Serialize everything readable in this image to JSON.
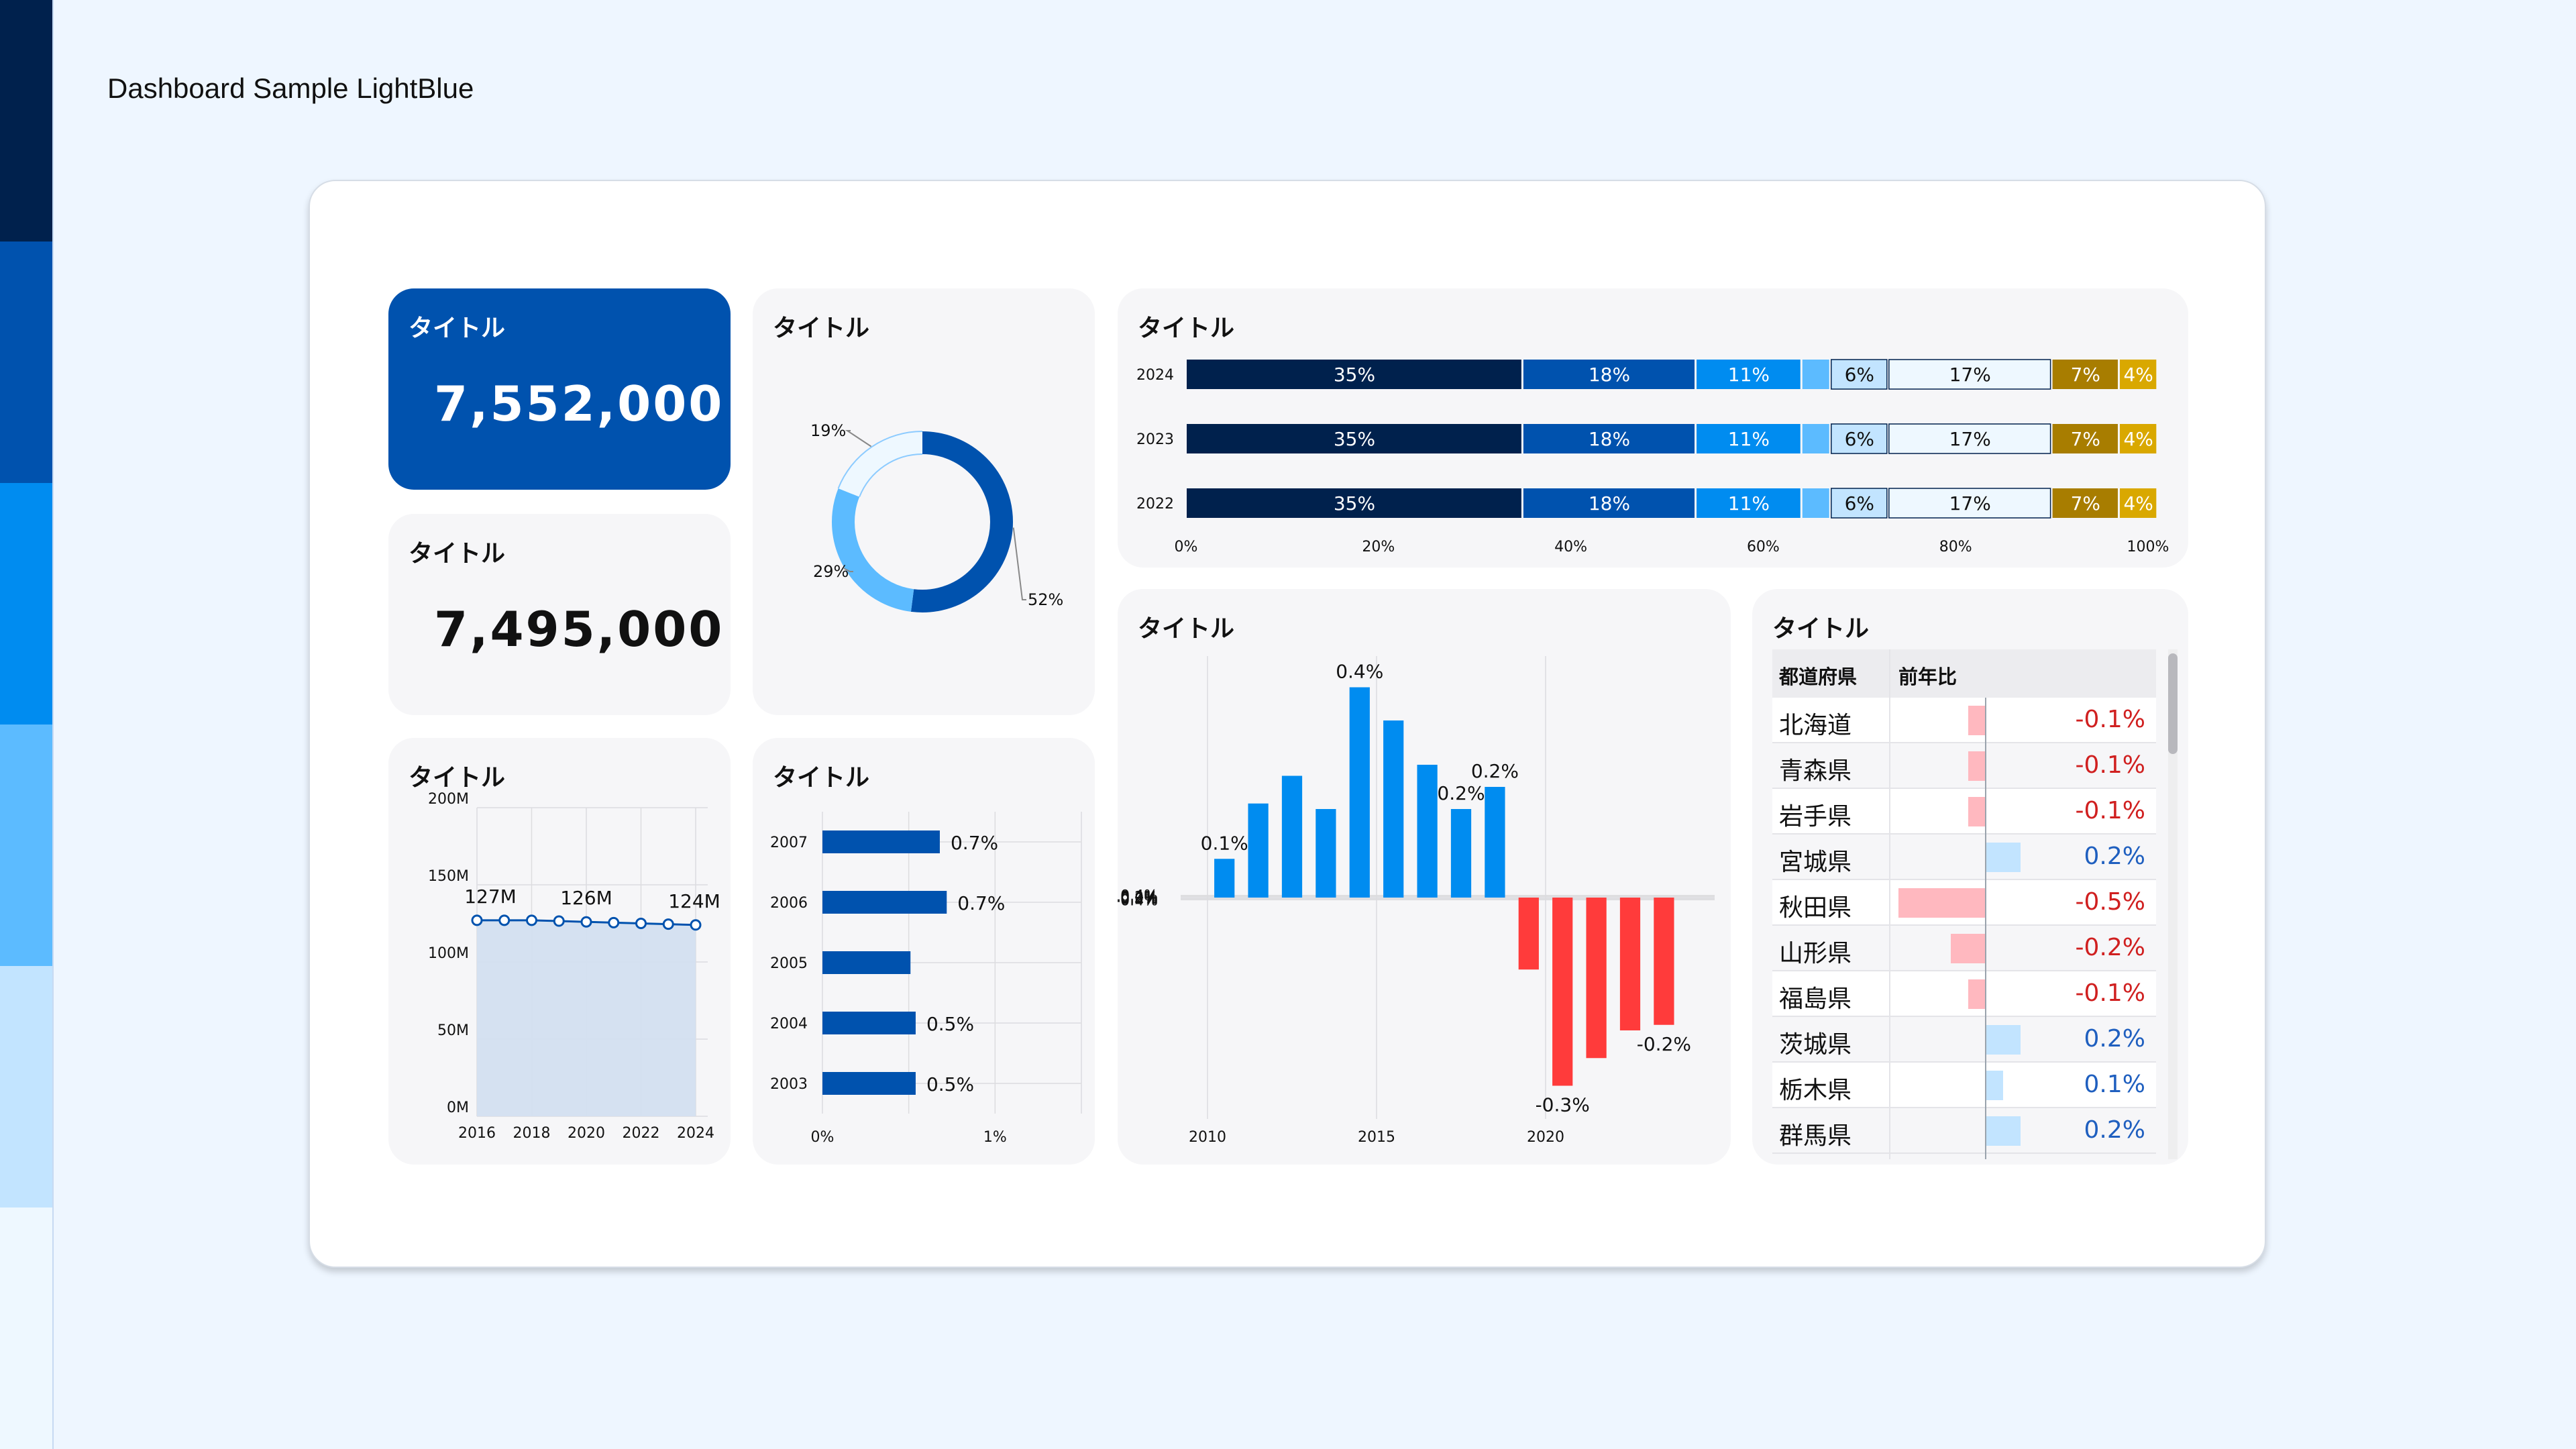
{
  "page_title": "Dashboard Sample LightBlue",
  "palette": [
    "#00214d",
    "#0052ae",
    "#008cf0",
    "#5cbbff",
    "#c2e4ff",
    "#eef8ff"
  ],
  "cards": {
    "kpi1": {
      "title": "タイトル",
      "value": "7,552,000"
    },
    "kpi2": {
      "title": "タイトル",
      "value": "7,495,000"
    },
    "donut": {
      "title": "タイトル"
    },
    "stacked": {
      "title": "タイトル"
    },
    "area": {
      "title": "タイトル"
    },
    "hbar": {
      "title": "タイトル"
    },
    "column": {
      "title": "タイトル"
    },
    "table": {
      "title": "タイトル"
    }
  },
  "chart_data": [
    {
      "id": "donut",
      "type": "pie",
      "hole": true,
      "slices": [
        {
          "value": 52,
          "label": "52%",
          "color": "#0052ae"
        },
        {
          "value": 29,
          "label": "29%",
          "color": "#5cbbff"
        },
        {
          "value": 19,
          "label": "19%",
          "color": "#eef8ff"
        }
      ]
    },
    {
      "id": "stacked",
      "type": "bar",
      "orientation": "horizontal",
      "stacked": "percent",
      "categories": [
        "2024",
        "2023",
        "2022"
      ],
      "segments": [
        {
          "values": [
            35,
            35,
            35
          ],
          "labels": [
            "35%",
            "35%",
            "35%"
          ],
          "color": "#00214d",
          "text": "#ffffff"
        },
        {
          "values": [
            18,
            18,
            18
          ],
          "labels": [
            "18%",
            "18%",
            "18%"
          ],
          "color": "#0052ae",
          "text": "#ffffff"
        },
        {
          "values": [
            11,
            11,
            11
          ],
          "labels": [
            "11%",
            "11%",
            "11%"
          ],
          "color": "#008cf0",
          "text": "#ffffff"
        },
        {
          "values": [
            3,
            3,
            3
          ],
          "labels": [
            "",
            "",
            ""
          ],
          "color": "#5cbbff",
          "text": "#111111"
        },
        {
          "values": [
            6,
            6,
            6
          ],
          "labels": [
            "6%",
            "6%",
            "6%"
          ],
          "color": "#c2e4ff",
          "text": "#111111"
        },
        {
          "values": [
            17,
            17,
            17
          ],
          "labels": [
            "17%",
            "17%",
            "17%"
          ],
          "color": "#eef8ff",
          "text": "#111111"
        },
        {
          "values": [
            7,
            7,
            7
          ],
          "labels": [
            "7%",
            "7%",
            "7%"
          ],
          "color": "#a87d00",
          "text": "#ffffff"
        },
        {
          "values": [
            4,
            4,
            4
          ],
          "labels": [
            "4%",
            "4%",
            "4%"
          ],
          "color": "#d9a800",
          "text": "#ffffff"
        }
      ],
      "x_ticks": [
        "0%",
        "20%",
        "40%",
        "60%",
        "80%",
        "100%"
      ],
      "xlim": [
        0,
        100
      ]
    },
    {
      "id": "area",
      "type": "area",
      "x": [
        2016,
        2017,
        2018,
        2019,
        2020,
        2021,
        2022,
        2023,
        2024
      ],
      "values": [
        127,
        127,
        127,
        126.5,
        126,
        125.5,
        125,
        124.5,
        124
      ],
      "labels": [
        {
          "index": 0,
          "text": "127M"
        },
        {
          "index": 4,
          "text": "126M"
        },
        {
          "index": 8,
          "text": "124M"
        }
      ],
      "x_ticks": [
        "2016",
        "2018",
        "2020",
        "2022",
        "2024"
      ],
      "y_ticks": [
        "0M",
        "50M",
        "100M",
        "150M",
        "200M"
      ],
      "ylim": [
        0,
        200
      ],
      "line_color": "#0052ae",
      "fill_color": "#d3dff0"
    },
    {
      "id": "hbar",
      "type": "bar",
      "orientation": "horizontal",
      "categories": [
        "2007",
        "2006",
        "2005",
        "2004",
        "2003"
      ],
      "values": [
        0.68,
        0.72,
        0.51,
        0.54,
        0.54
      ],
      "labels": [
        "0.7%",
        "0.7%",
        "",
        "0.5%",
        "0.5%"
      ],
      "x_ticks": [
        "0%",
        "1%"
      ],
      "xlim": [
        0,
        1.5
      ],
      "color": "#0052ae"
    },
    {
      "id": "column",
      "type": "bar",
      "x": [
        2010,
        2011,
        2012,
        2013,
        2014,
        2015,
        2016,
        2017,
        2018,
        2019,
        2020,
        2021,
        2022,
        2023,
        2024
      ],
      "values": [
        0.07,
        0.17,
        0.22,
        0.16,
        0.38,
        0.32,
        0.24,
        0.16,
        0.2,
        -0.13,
        -0.34,
        -0.29,
        -0.24,
        -0.23,
        0
      ],
      "labels": [
        "0.1%",
        "",
        "",
        "",
        "0.4%",
        "",
        "",
        "0.2%",
        "0.2%",
        "",
        "-0.3%",
        "",
        "",
        "-0.2%",
        ""
      ],
      "x_ticks": [
        "2010",
        "2015",
        "2020"
      ],
      "y_ticks": [
        "0.4%",
        "0.2%",
        "0.0%",
        "-0.2%",
        "-0.4%"
      ],
      "ylim": [
        -0.4,
        0.4
      ],
      "positive_color": "#008cf0",
      "negative_color": "#ff3b3b"
    },
    {
      "id": "table",
      "type": "table",
      "columns": [
        "都道府県",
        "前年比"
      ],
      "rows": [
        {
          "pref": "北海道",
          "value": -0.1,
          "label": "-0.1%"
        },
        {
          "pref": "青森県",
          "value": -0.1,
          "label": "-0.1%"
        },
        {
          "pref": "岩手県",
          "value": -0.1,
          "label": "-0.1%"
        },
        {
          "pref": "宮城県",
          "value": 0.2,
          "label": "0.2%"
        },
        {
          "pref": "秋田県",
          "value": -0.5,
          "label": "-0.5%"
        },
        {
          "pref": "山形県",
          "value": -0.2,
          "label": "-0.2%"
        },
        {
          "pref": "福島県",
          "value": -0.1,
          "label": "-0.1%"
        },
        {
          "pref": "茨城県",
          "value": 0.2,
          "label": "0.2%"
        },
        {
          "pref": "栃木県",
          "value": 0.1,
          "label": "0.1%"
        },
        {
          "pref": "群馬県",
          "value": 0.2,
          "label": "0.2%"
        }
      ],
      "positive_color": "#1f5fbf",
      "negative_color": "#d02020",
      "positive_bar": "#c2e4ff",
      "negative_bar": "#ffb8bf"
    }
  ]
}
